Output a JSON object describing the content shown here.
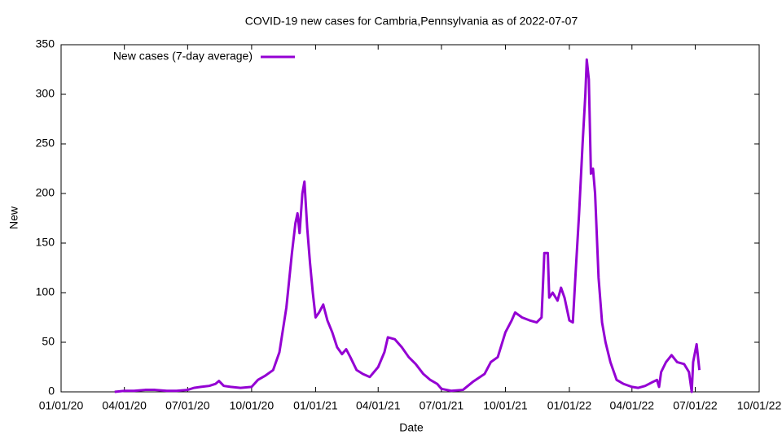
{
  "chart_data": {
    "type": "line",
    "title": "COVID-19 new cases for Cambria,Pennsylvania as of 2022-07-07",
    "x_label": "Date",
    "y_label": "New",
    "legend": "top-left",
    "xlim": [
      "2020-01-01",
      "2022-10-01"
    ],
    "xticks": [
      {
        "value": "2020-01-01",
        "label": "01/01/20"
      },
      {
        "value": "2020-04-01",
        "label": "04/01/20"
      },
      {
        "value": "2020-07-01",
        "label": "07/01/20"
      },
      {
        "value": "2020-10-01",
        "label": "10/01/20"
      },
      {
        "value": "2021-01-01",
        "label": "01/01/21"
      },
      {
        "value": "2021-04-01",
        "label": "04/01/21"
      },
      {
        "value": "2021-07-01",
        "label": "07/01/21"
      },
      {
        "value": "2021-10-01",
        "label": "10/01/21"
      },
      {
        "value": "2022-01-01",
        "label": "01/01/22"
      },
      {
        "value": "2022-04-01",
        "label": "04/01/22"
      },
      {
        "value": "2022-07-01",
        "label": "07/01/22"
      },
      {
        "value": "2022-10-01",
        "label": "10/01/22"
      }
    ],
    "ylim": [
      0,
      350
    ],
    "yticks": [
      0,
      50,
      100,
      150,
      200,
      250,
      300,
      350
    ],
    "x": [
      "2020-03-18",
      "2020-04-01",
      "2020-04-15",
      "2020-05-01",
      "2020-05-15",
      "2020-06-01",
      "2020-06-15",
      "2020-07-01",
      "2020-07-10",
      "2020-07-20",
      "2020-08-01",
      "2020-08-10",
      "2020-08-15",
      "2020-08-22",
      "2020-09-01",
      "2020-09-15",
      "2020-10-01",
      "2020-10-10",
      "2020-10-20",
      "2020-11-01",
      "2020-11-10",
      "2020-11-20",
      "2020-11-28",
      "2020-12-03",
      "2020-12-06",
      "2020-12-09",
      "2020-12-13",
      "2020-12-16",
      "2020-12-20",
      "2020-12-24",
      "2020-12-28",
      "2021-01-01",
      "2021-01-06",
      "2021-01-12",
      "2021-01-18",
      "2021-01-25",
      "2021-02-01",
      "2021-02-08",
      "2021-02-14",
      "2021-02-20",
      "2021-03-01",
      "2021-03-10",
      "2021-03-20",
      "2021-04-01",
      "2021-04-10",
      "2021-04-15",
      "2021-04-25",
      "2021-05-05",
      "2021-05-15",
      "2021-05-25",
      "2021-06-05",
      "2021-06-15",
      "2021-06-25",
      "2021-07-01",
      "2021-07-15",
      "2021-08-01",
      "2021-08-15",
      "2021-09-01",
      "2021-09-10",
      "2021-09-20",
      "2021-10-01",
      "2021-10-10",
      "2021-10-15",
      "2021-10-25",
      "2021-11-05",
      "2021-11-15",
      "2021-11-22",
      "2021-11-26",
      "2021-12-01",
      "2021-12-03",
      "2021-12-08",
      "2021-12-15",
      "2021-12-20",
      "2021-12-25",
      "2022-01-01",
      "2022-01-06",
      "2022-01-10",
      "2022-01-15",
      "2022-01-20",
      "2022-01-24",
      "2022-01-26",
      "2022-01-29",
      "2022-02-01",
      "2022-02-04",
      "2022-02-07",
      "2022-02-12",
      "2022-02-17",
      "2022-02-22",
      "2022-03-01",
      "2022-03-10",
      "2022-03-20",
      "2022-04-01",
      "2022-04-10",
      "2022-04-20",
      "2022-05-01",
      "2022-05-07",
      "2022-05-10",
      "2022-05-13",
      "2022-05-20",
      "2022-05-28",
      "2022-06-05",
      "2022-06-15",
      "2022-06-22",
      "2022-06-26",
      "2022-06-28",
      "2022-07-03",
      "2022-07-07"
    ],
    "series": [
      {
        "name": "New cases (7-day average)",
        "color": "#9400d3",
        "values": [
          0,
          1,
          1,
          2,
          2,
          1,
          1,
          2,
          4,
          5,
          6,
          8,
          11,
          6,
          5,
          4,
          5,
          12,
          16,
          22,
          40,
          85,
          140,
          170,
          180,
          160,
          200,
          212,
          165,
          130,
          100,
          75,
          80,
          88,
          72,
          60,
          45,
          38,
          43,
          35,
          22,
          18,
          15,
          25,
          40,
          55,
          53,
          45,
          35,
          28,
          18,
          12,
          8,
          3,
          1,
          2,
          10,
          18,
          30,
          35,
          60,
          72,
          80,
          75,
          72,
          70,
          75,
          140,
          140,
          95,
          100,
          92,
          105,
          95,
          72,
          70,
          120,
          180,
          250,
          300,
          335,
          315,
          220,
          225,
          200,
          115,
          70,
          50,
          30,
          12,
          8,
          5,
          4,
          6,
          10,
          12,
          5,
          20,
          30,
          37,
          30,
          28,
          20,
          0,
          30,
          48,
          22
        ]
      }
    ]
  }
}
